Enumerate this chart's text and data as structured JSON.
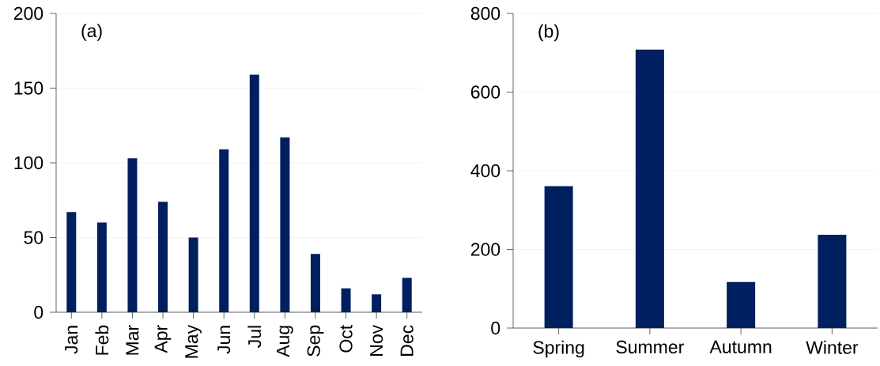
{
  "chart_data": [
    {
      "type": "bar",
      "title": "(a)",
      "categories": [
        "Jan",
        "Feb",
        "Mar",
        "Apr",
        "May",
        "Jun",
        "Jul",
        "Aug",
        "Sep",
        "Oct",
        "Nov",
        "Dec"
      ],
      "values": [
        67,
        60,
        103,
        74,
        50,
        109,
        159,
        117,
        39,
        16,
        12,
        23
      ],
      "color": "#001f5f",
      "ylim": [
        0,
        200
      ],
      "yticks": [
        0,
        50,
        100,
        150,
        200
      ],
      "grid": "y"
    },
    {
      "type": "bar",
      "title": "(b)",
      "categories": [
        "Spring",
        "Summer",
        "Autumn",
        "Winter"
      ],
      "values": [
        361,
        708,
        117,
        237
      ],
      "color": "#001f5f",
      "ylim": [
        0,
        800
      ],
      "yticks": [
        0,
        200,
        400,
        600,
        800
      ],
      "grid": "y"
    }
  ]
}
